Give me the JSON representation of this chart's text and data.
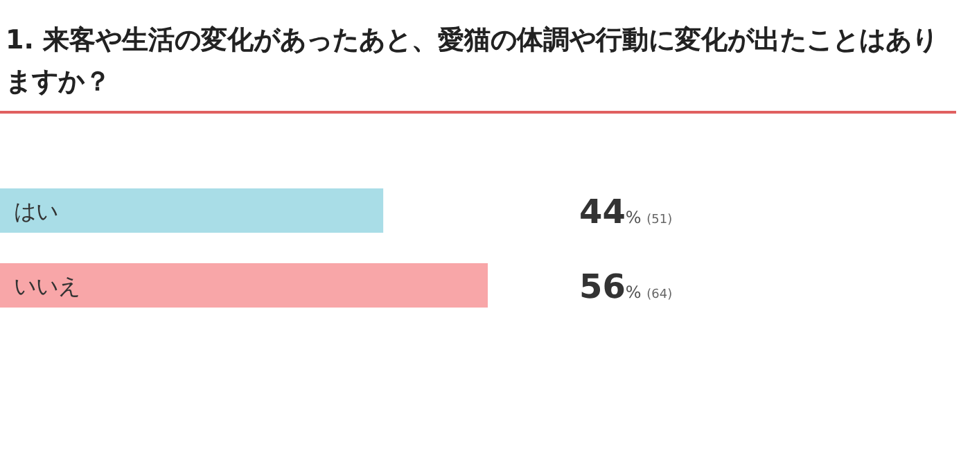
{
  "chart_data": {
    "type": "bar",
    "orientation": "horizontal",
    "title": "1. 来客や生活の変化があったあと、愛猫の体調や行動に変化が出たことはありますか？",
    "categories": [
      "はい",
      "いいえ"
    ],
    "values": [
      44,
      56
    ],
    "colors": [
      "#a9dde7",
      "#f8a6a8"
    ],
    "value_labels": [
      "44% (51)",
      "56% (64)"
    ]
  }
}
